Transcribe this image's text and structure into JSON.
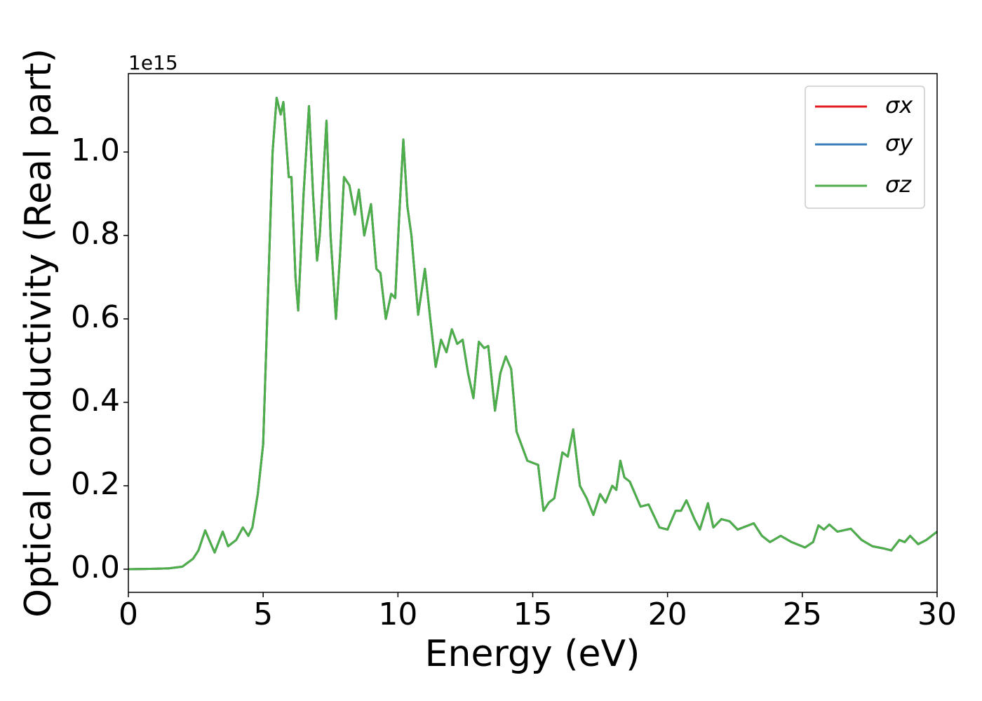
{
  "chart_data": {
    "type": "line",
    "xlabel": "Energy (eV)",
    "ylabel": "Optical conductivity (Real part)",
    "y_offset_label": "1e15",
    "xlim": [
      0,
      30
    ],
    "ylim": [
      -0.0555,
      1.188
    ],
    "xticks": [
      0,
      5,
      10,
      15,
      20,
      25,
      30
    ],
    "yticks": [
      {
        "value": 0,
        "label": "0.0"
      },
      0.2,
      0.4,
      0.6,
      0.8,
      {
        "value": 1,
        "label": "1.0"
      }
    ],
    "legend": "upper right",
    "x": [
      0,
      1,
      1.5,
      2,
      2.4,
      2.6,
      2.85,
      3.0,
      3.2,
      3.5,
      3.7,
      4.0,
      4.25,
      4.45,
      4.6,
      4.8,
      5.0,
      5.2,
      5.35,
      5.5,
      5.65,
      5.75,
      5.95,
      6.05,
      6.2,
      6.3,
      6.5,
      6.7,
      6.85,
      7.0,
      7.1,
      7.35,
      7.5,
      7.7,
      7.85,
      8.0,
      8.2,
      8.4,
      8.55,
      8.75,
      9.0,
      9.2,
      9.35,
      9.55,
      9.75,
      9.9,
      10.05,
      10.2,
      10.35,
      10.5,
      10.75,
      11.0,
      11.2,
      11.4,
      11.6,
      11.8,
      12.0,
      12.2,
      12.4,
      12.6,
      12.8,
      13.0,
      13.2,
      13.35,
      13.6,
      13.8,
      14.0,
      14.2,
      14.4,
      14.6,
      14.8,
      15.2,
      15.4,
      15.6,
      15.8,
      16.1,
      16.3,
      16.5,
      16.75,
      17.0,
      17.25,
      17.5,
      17.7,
      17.95,
      18.1,
      18.25,
      18.4,
      18.6,
      19.0,
      19.3,
      19.7,
      20.0,
      20.3,
      20.5,
      20.7,
      21.0,
      21.2,
      21.5,
      21.7,
      22.0,
      22.3,
      22.6,
      23.2,
      23.5,
      23.8,
      24.2,
      24.6,
      25.1,
      25.4,
      25.6,
      25.8,
      26.0,
      26.3,
      26.8,
      27.2,
      27.6,
      28.0,
      28.3,
      28.6,
      28.8,
      29.0,
      29.3,
      29.6,
      30.0
    ],
    "series": [
      {
        "name": "σx",
        "color": "#e41a1c",
        "values": [
          0,
          0.001,
          0.002,
          0.006,
          0.025,
          0.045,
          0.093,
          0.07,
          0.04,
          0.09,
          0.055,
          0.07,
          0.1,
          0.08,
          0.1,
          0.18,
          0.3,
          0.7,
          1.0,
          1.13,
          1.09,
          1.12,
          0.94,
          0.94,
          0.7,
          0.62,
          0.9,
          1.11,
          0.9,
          0.74,
          0.8,
          1.075,
          0.8,
          0.6,
          0.75,
          0.94,
          0.92,
          0.85,
          0.91,
          0.8,
          0.875,
          0.72,
          0.71,
          0.6,
          0.66,
          0.65,
          0.85,
          1.03,
          0.87,
          0.8,
          0.61,
          0.72,
          0.6,
          0.485,
          0.55,
          0.52,
          0.575,
          0.54,
          0.55,
          0.47,
          0.41,
          0.545,
          0.53,
          0.535,
          0.38,
          0.47,
          0.51,
          0.48,
          0.33,
          0.295,
          0.26,
          0.25,
          0.14,
          0.16,
          0.17,
          0.28,
          0.27,
          0.335,
          0.2,
          0.17,
          0.13,
          0.18,
          0.16,
          0.2,
          0.19,
          0.26,
          0.22,
          0.21,
          0.15,
          0.155,
          0.1,
          0.095,
          0.14,
          0.14,
          0.165,
          0.12,
          0.095,
          0.158,
          0.1,
          0.12,
          0.115,
          0.095,
          0.11,
          0.08,
          0.065,
          0.08,
          0.065,
          0.052,
          0.065,
          0.105,
          0.095,
          0.107,
          0.09,
          0.097,
          0.07,
          0.055,
          0.05,
          0.045,
          0.07,
          0.065,
          0.08,
          0.06,
          0.07,
          0.09
        ]
      },
      {
        "name": "σy",
        "color": "#377eb8",
        "values": [
          0,
          0.001,
          0.002,
          0.006,
          0.025,
          0.045,
          0.093,
          0.07,
          0.04,
          0.09,
          0.055,
          0.07,
          0.1,
          0.08,
          0.1,
          0.18,
          0.3,
          0.7,
          1.0,
          1.13,
          1.09,
          1.12,
          0.94,
          0.94,
          0.7,
          0.62,
          0.9,
          1.11,
          0.9,
          0.74,
          0.8,
          1.075,
          0.8,
          0.6,
          0.75,
          0.94,
          0.92,
          0.85,
          0.91,
          0.8,
          0.875,
          0.72,
          0.71,
          0.6,
          0.66,
          0.65,
          0.85,
          1.03,
          0.87,
          0.8,
          0.61,
          0.72,
          0.6,
          0.485,
          0.55,
          0.52,
          0.575,
          0.54,
          0.55,
          0.47,
          0.41,
          0.545,
          0.53,
          0.535,
          0.38,
          0.47,
          0.51,
          0.48,
          0.33,
          0.295,
          0.26,
          0.25,
          0.14,
          0.16,
          0.17,
          0.28,
          0.27,
          0.335,
          0.2,
          0.17,
          0.13,
          0.18,
          0.16,
          0.2,
          0.19,
          0.26,
          0.22,
          0.21,
          0.15,
          0.155,
          0.1,
          0.095,
          0.14,
          0.14,
          0.165,
          0.12,
          0.095,
          0.158,
          0.1,
          0.12,
          0.115,
          0.095,
          0.11,
          0.08,
          0.065,
          0.08,
          0.065,
          0.052,
          0.065,
          0.105,
          0.095,
          0.107,
          0.09,
          0.097,
          0.07,
          0.055,
          0.05,
          0.045,
          0.07,
          0.065,
          0.08,
          0.06,
          0.07,
          0.09
        ]
      },
      {
        "name": "σz",
        "color": "#4daf4a",
        "values": [
          0,
          0.001,
          0.002,
          0.006,
          0.025,
          0.045,
          0.093,
          0.07,
          0.04,
          0.09,
          0.055,
          0.07,
          0.1,
          0.08,
          0.1,
          0.18,
          0.3,
          0.7,
          1.0,
          1.13,
          1.09,
          1.12,
          0.94,
          0.94,
          0.7,
          0.62,
          0.9,
          1.11,
          0.9,
          0.74,
          0.8,
          1.075,
          0.8,
          0.6,
          0.75,
          0.94,
          0.92,
          0.85,
          0.91,
          0.8,
          0.875,
          0.72,
          0.71,
          0.6,
          0.66,
          0.65,
          0.85,
          1.03,
          0.87,
          0.8,
          0.61,
          0.72,
          0.6,
          0.485,
          0.55,
          0.52,
          0.575,
          0.54,
          0.55,
          0.47,
          0.41,
          0.545,
          0.53,
          0.535,
          0.38,
          0.47,
          0.51,
          0.48,
          0.33,
          0.295,
          0.26,
          0.25,
          0.14,
          0.16,
          0.17,
          0.28,
          0.27,
          0.335,
          0.2,
          0.17,
          0.13,
          0.18,
          0.16,
          0.2,
          0.19,
          0.26,
          0.22,
          0.21,
          0.15,
          0.155,
          0.1,
          0.095,
          0.14,
          0.14,
          0.165,
          0.12,
          0.095,
          0.158,
          0.1,
          0.12,
          0.115,
          0.095,
          0.11,
          0.08,
          0.065,
          0.08,
          0.065,
          0.052,
          0.065,
          0.105,
          0.095,
          0.107,
          0.09,
          0.097,
          0.07,
          0.055,
          0.05,
          0.045,
          0.07,
          0.065,
          0.08,
          0.06,
          0.07,
          0.09
        ]
      }
    ]
  }
}
